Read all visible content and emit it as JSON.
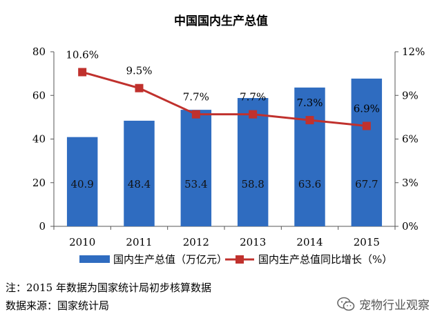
{
  "chart_data": {
    "type": "bar",
    "title": "中国国内生产总值",
    "categories": [
      "2010",
      "2011",
      "2012",
      "2013",
      "2014",
      "2015"
    ],
    "series": [
      {
        "name": "国内生产总值（万亿元）",
        "type": "bar",
        "axis": "left",
        "values": [
          40.9,
          48.4,
          53.4,
          58.8,
          63.6,
          67.7
        ],
        "labels": [
          "40.9",
          "48.4",
          "53.4",
          "58.8",
          "63.6",
          "67.7"
        ]
      },
      {
        "name": "国内生产总值同比增长（%）",
        "type": "line",
        "axis": "right",
        "values": [
          10.6,
          9.5,
          7.7,
          7.7,
          7.3,
          6.9
        ],
        "labels": [
          "10.6%",
          "9.5%",
          "7.7%",
          "7.7%",
          "7.3%",
          "6.9%"
        ]
      }
    ],
    "y_left": {
      "ylim": [
        0,
        80
      ],
      "ticks": [
        "0",
        "20",
        "40",
        "60",
        "80"
      ],
      "tick_values": [
        0,
        20,
        40,
        60,
        80
      ]
    },
    "y_right": {
      "ylim": [
        0,
        12
      ],
      "ticks": [
        "0%",
        "3%",
        "6%",
        "9%",
        "12%"
      ],
      "tick_values": [
        0,
        3,
        6,
        9,
        12
      ]
    },
    "legend_position": "bottom",
    "grid": false
  },
  "colors": {
    "bar": "#2f6cc0",
    "line": "#c0312d"
  },
  "notes": {
    "line1": "注：2015 年数据为国家统计局初步核算数据",
    "line2": "数据来源：国家统计局"
  },
  "watermark": {
    "text": "宠物行业观察",
    "icon": "wechat-icon"
  }
}
